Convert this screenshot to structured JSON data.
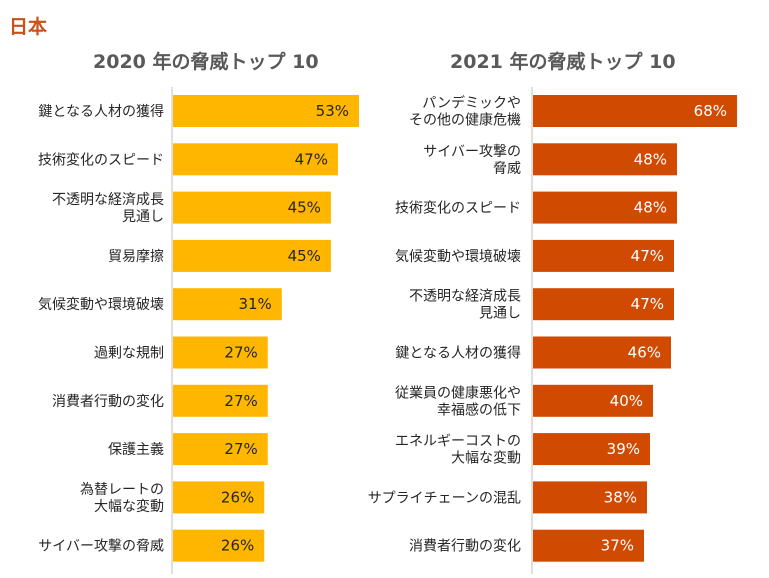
{
  "region_title": "日本",
  "colors": {
    "region_title": "#c8511a",
    "bar_2020": "#ffb600",
    "bar_2021": "#d04a02",
    "label_2020": "#262626",
    "label_2021": "#ffffff",
    "axis": "#bfbfbf"
  },
  "chart_data": [
    {
      "type": "bar",
      "orientation": "horizontal",
      "title": "2020 年の脅威トップ 10",
      "xlabel": "",
      "ylabel": "",
      "grid": false,
      "legend": "none",
      "unit": "%",
      "categories": [
        [
          "鍵となる人材の獲得"
        ],
        [
          "技術変化のスピード"
        ],
        [
          "不透明な経済成長",
          "見通し"
        ],
        [
          "貿易摩擦"
        ],
        [
          "気候変動や環境破壊"
        ],
        [
          "過剰な規制"
        ],
        [
          "消費者行動の変化"
        ],
        [
          "保護主義"
        ],
        [
          "為替レートの",
          "大幅な変動"
        ],
        [
          "サイバー攻撃の脅威"
        ]
      ],
      "values": [
        53,
        47,
        45,
        45,
        31,
        27,
        27,
        27,
        26,
        26
      ],
      "data_labels": [
        "53%",
        "47%",
        "45%",
        "45%",
        "31%",
        "27%",
        "27%",
        "27%",
        "26%",
        "26%"
      ]
    },
    {
      "type": "bar",
      "orientation": "horizontal",
      "title": "2021 年の脅威トップ 10",
      "xlabel": "",
      "ylabel": "",
      "grid": false,
      "legend": "none",
      "unit": "%",
      "categories": [
        [
          "パンデミックや",
          "その他の健康危機"
        ],
        [
          "サイバー攻撃の",
          "脅威"
        ],
        [
          "技術変化のスピード"
        ],
        [
          "気候変動や環境破壊"
        ],
        [
          "不透明な経済成長",
          "見通し"
        ],
        [
          "鍵となる人材の獲得"
        ],
        [
          "従業員の健康悪化や",
          "幸福感の低下"
        ],
        [
          "エネルギーコストの",
          "大幅な変動"
        ],
        [
          "サプライチェーンの混乱"
        ],
        [
          "消費者行動の変化"
        ]
      ],
      "values": [
        68,
        48,
        48,
        47,
        47,
        46,
        40,
        39,
        38,
        37
      ],
      "data_labels": [
        "68%",
        "48%",
        "48%",
        "47%",
        "47%",
        "46%",
        "40%",
        "39%",
        "38%",
        "37%"
      ]
    }
  ]
}
